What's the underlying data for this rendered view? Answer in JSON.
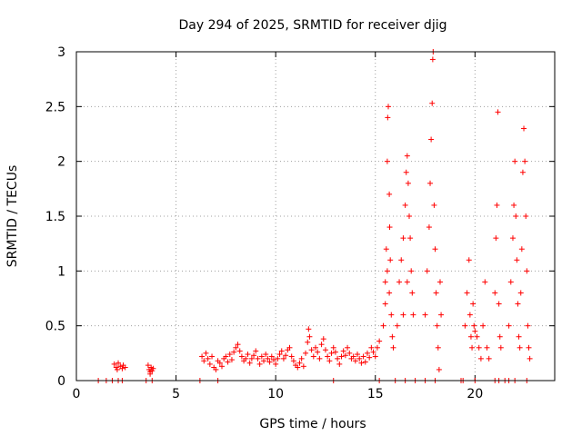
{
  "chart_data": {
    "type": "scatter",
    "title": "Day 294 of 2025, SRMTID for receiver djig",
    "xlabel": "GPS time / hours",
    "ylabel": "SRMTID / TECUs",
    "xlim": [
      0,
      24
    ],
    "ylim": [
      0,
      3
    ],
    "grid": true,
    "x_ticks": [
      0,
      5,
      10,
      15,
      20
    ],
    "y_ticks": [
      0,
      0.5,
      1,
      1.5,
      2,
      2.5,
      3
    ],
    "x_tick_labels": [
      "0",
      "5",
      "10",
      "15",
      "20"
    ],
    "y_tick_labels": [
      "0",
      "0.5",
      "1",
      "1.5",
      "2",
      "2.5",
      "3"
    ],
    "marker": "+",
    "color": "#ff0000",
    "points": [
      [
        1.1,
        0.0
      ],
      [
        1.5,
        0.0
      ],
      [
        1.8,
        0.0
      ],
      [
        2.1,
        0.0
      ],
      [
        2.3,
        0.0
      ],
      [
        3.5,
        0.0
      ],
      [
        3.8,
        0.0
      ],
      [
        6.2,
        0.0
      ],
      [
        7.1,
        0.0
      ],
      [
        12.9,
        0.0
      ],
      [
        15.2,
        0.0
      ],
      [
        16.0,
        0.0
      ],
      [
        16.5,
        0.0
      ],
      [
        17.0,
        0.0
      ],
      [
        17.5,
        0.0
      ],
      [
        18.0,
        0.0
      ],
      [
        19.3,
        0.0
      ],
      [
        19.4,
        0.0
      ],
      [
        20.0,
        0.0
      ],
      [
        21.0,
        0.0
      ],
      [
        21.2,
        0.0
      ],
      [
        21.5,
        0.0
      ],
      [
        21.7,
        0.0
      ],
      [
        22.0,
        0.0
      ],
      [
        22.6,
        0.0
      ],
      [
        1.9,
        0.15
      ],
      [
        2.0,
        0.12
      ],
      [
        2.05,
        0.1
      ],
      [
        2.1,
        0.16
      ],
      [
        2.2,
        0.13
      ],
      [
        2.3,
        0.11
      ],
      [
        2.35,
        0.14
      ],
      [
        2.45,
        0.12
      ],
      [
        3.6,
        0.14
      ],
      [
        3.65,
        0.1
      ],
      [
        3.7,
        0.08
      ],
      [
        3.75,
        0.12
      ],
      [
        3.8,
        0.09
      ],
      [
        3.85,
        0.11
      ],
      [
        3.7,
        0.06
      ],
      [
        6.3,
        0.22
      ],
      [
        6.4,
        0.18
      ],
      [
        6.5,
        0.25
      ],
      [
        6.6,
        0.2
      ],
      [
        6.7,
        0.15
      ],
      [
        6.8,
        0.22
      ],
      [
        6.9,
        0.12
      ],
      [
        7.0,
        0.1
      ],
      [
        7.1,
        0.18
      ],
      [
        7.2,
        0.16
      ],
      [
        7.3,
        0.13
      ],
      [
        7.4,
        0.2
      ],
      [
        7.5,
        0.22
      ],
      [
        7.6,
        0.17
      ],
      [
        7.7,
        0.24
      ],
      [
        7.8,
        0.19
      ],
      [
        7.9,
        0.26
      ],
      [
        8.0,
        0.3
      ],
      [
        8.1,
        0.33
      ],
      [
        8.2,
        0.27
      ],
      [
        8.3,
        0.22
      ],
      [
        8.4,
        0.18
      ],
      [
        8.5,
        0.2
      ],
      [
        8.6,
        0.24
      ],
      [
        8.7,
        0.16
      ],
      [
        8.8,
        0.2
      ],
      [
        8.9,
        0.23
      ],
      [
        9.0,
        0.27
      ],
      [
        9.1,
        0.2
      ],
      [
        9.2,
        0.15
      ],
      [
        9.3,
        0.22
      ],
      [
        9.4,
        0.18
      ],
      [
        9.5,
        0.24
      ],
      [
        9.6,
        0.2
      ],
      [
        9.7,
        0.17
      ],
      [
        9.8,
        0.22
      ],
      [
        9.9,
        0.19
      ],
      [
        10.0,
        0.15
      ],
      [
        10.1,
        0.2
      ],
      [
        10.2,
        0.24
      ],
      [
        10.3,
        0.27
      ],
      [
        10.4,
        0.2
      ],
      [
        10.5,
        0.23
      ],
      [
        10.6,
        0.28
      ],
      [
        10.7,
        0.3
      ],
      [
        10.8,
        0.22
      ],
      [
        10.9,
        0.18
      ],
      [
        11.0,
        0.14
      ],
      [
        11.1,
        0.12
      ],
      [
        11.2,
        0.16
      ],
      [
        11.3,
        0.2
      ],
      [
        11.4,
        0.13
      ],
      [
        11.5,
        0.25
      ],
      [
        11.6,
        0.35
      ],
      [
        11.65,
        0.47
      ],
      [
        11.7,
        0.4
      ],
      [
        11.8,
        0.28
      ],
      [
        11.9,
        0.22
      ],
      [
        12.0,
        0.3
      ],
      [
        12.1,
        0.26
      ],
      [
        12.2,
        0.2
      ],
      [
        12.3,
        0.33
      ],
      [
        12.4,
        0.38
      ],
      [
        12.5,
        0.28
      ],
      [
        12.6,
        0.22
      ],
      [
        12.7,
        0.18
      ],
      [
        12.8,
        0.25
      ],
      [
        12.9,
        0.3
      ],
      [
        13.0,
        0.26
      ],
      [
        13.1,
        0.2
      ],
      [
        13.2,
        0.15
      ],
      [
        13.3,
        0.22
      ],
      [
        13.4,
        0.27
      ],
      [
        13.5,
        0.23
      ],
      [
        13.6,
        0.3
      ],
      [
        13.7,
        0.25
      ],
      [
        13.8,
        0.2
      ],
      [
        13.9,
        0.22
      ],
      [
        14.0,
        0.18
      ],
      [
        14.1,
        0.24
      ],
      [
        14.2,
        0.2
      ],
      [
        14.3,
        0.16
      ],
      [
        14.4,
        0.22
      ],
      [
        14.5,
        0.17
      ],
      [
        14.6,
        0.25
      ],
      [
        14.7,
        0.21
      ],
      [
        14.8,
        0.3
      ],
      [
        14.9,
        0.26
      ],
      [
        15.0,
        0.22
      ],
      [
        15.1,
        0.3
      ],
      [
        15.2,
        0.36
      ],
      [
        15.4,
        0.5
      ],
      [
        15.5,
        0.9
      ],
      [
        15.55,
        1.2
      ],
      [
        15.6,
        2.0
      ],
      [
        15.62,
        2.4
      ],
      [
        15.65,
        2.5
      ],
      [
        15.7,
        1.7
      ],
      [
        15.72,
        1.4
      ],
      [
        15.75,
        1.1
      ],
      [
        15.8,
        0.6
      ],
      [
        15.85,
        0.4
      ],
      [
        15.9,
        0.3
      ],
      [
        15.5,
        0.7
      ],
      [
        15.6,
        1.0
      ],
      [
        15.7,
        0.8
      ],
      [
        16.1,
        0.5
      ],
      [
        16.2,
        0.9
      ],
      [
        16.3,
        1.1
      ],
      [
        16.4,
        1.3
      ],
      [
        16.5,
        1.6
      ],
      [
        16.55,
        1.9
      ],
      [
        16.6,
        2.05
      ],
      [
        16.65,
        1.8
      ],
      [
        16.7,
        1.5
      ],
      [
        16.75,
        1.3
      ],
      [
        16.8,
        1.0
      ],
      [
        16.85,
        0.8
      ],
      [
        16.9,
        0.6
      ],
      [
        16.4,
        0.6
      ],
      [
        16.6,
        0.9
      ],
      [
        17.5,
        0.6
      ],
      [
        17.6,
        1.0
      ],
      [
        17.7,
        1.4
      ],
      [
        17.75,
        1.8
      ],
      [
        17.8,
        2.2
      ],
      [
        17.85,
        2.53
      ],
      [
        17.88,
        2.93
      ],
      [
        17.9,
        3.0
      ],
      [
        17.95,
        1.6
      ],
      [
        18.0,
        1.2
      ],
      [
        18.05,
        0.8
      ],
      [
        18.1,
        0.5
      ],
      [
        18.15,
        0.3
      ],
      [
        18.2,
        0.1
      ],
      [
        18.25,
        0.9
      ],
      [
        18.3,
        0.6
      ],
      [
        19.5,
        0.5
      ],
      [
        19.6,
        0.8
      ],
      [
        19.7,
        1.1
      ],
      [
        19.75,
        0.6
      ],
      [
        19.8,
        0.4
      ],
      [
        19.85,
        0.3
      ],
      [
        19.9,
        0.7
      ],
      [
        19.95,
        0.5
      ],
      [
        20.0,
        0.45
      ],
      [
        20.1,
        0.4
      ],
      [
        20.2,
        0.3
      ],
      [
        20.3,
        0.2
      ],
      [
        20.4,
        0.5
      ],
      [
        20.5,
        0.9
      ],
      [
        20.6,
        0.3
      ],
      [
        20.7,
        0.2
      ],
      [
        21.0,
        0.8
      ],
      [
        21.05,
        1.3
      ],
      [
        21.1,
        1.6
      ],
      [
        21.15,
        2.45
      ],
      [
        21.2,
        0.7
      ],
      [
        21.25,
        0.4
      ],
      [
        21.3,
        0.3
      ],
      [
        21.7,
        0.5
      ],
      [
        21.8,
        0.9
      ],
      [
        21.9,
        1.3
      ],
      [
        21.95,
        1.6
      ],
      [
        22.0,
        2.0
      ],
      [
        22.05,
        1.5
      ],
      [
        22.1,
        1.1
      ],
      [
        22.15,
        0.7
      ],
      [
        22.2,
        0.4
      ],
      [
        22.25,
        0.3
      ],
      [
        22.3,
        0.8
      ],
      [
        22.35,
        1.2
      ],
      [
        22.4,
        1.9
      ],
      [
        22.45,
        2.3
      ],
      [
        22.5,
        2.0
      ],
      [
        22.55,
        1.5
      ],
      [
        22.6,
        1.0
      ],
      [
        22.65,
        0.5
      ],
      [
        22.7,
        0.3
      ],
      [
        22.75,
        0.2
      ]
    ]
  }
}
